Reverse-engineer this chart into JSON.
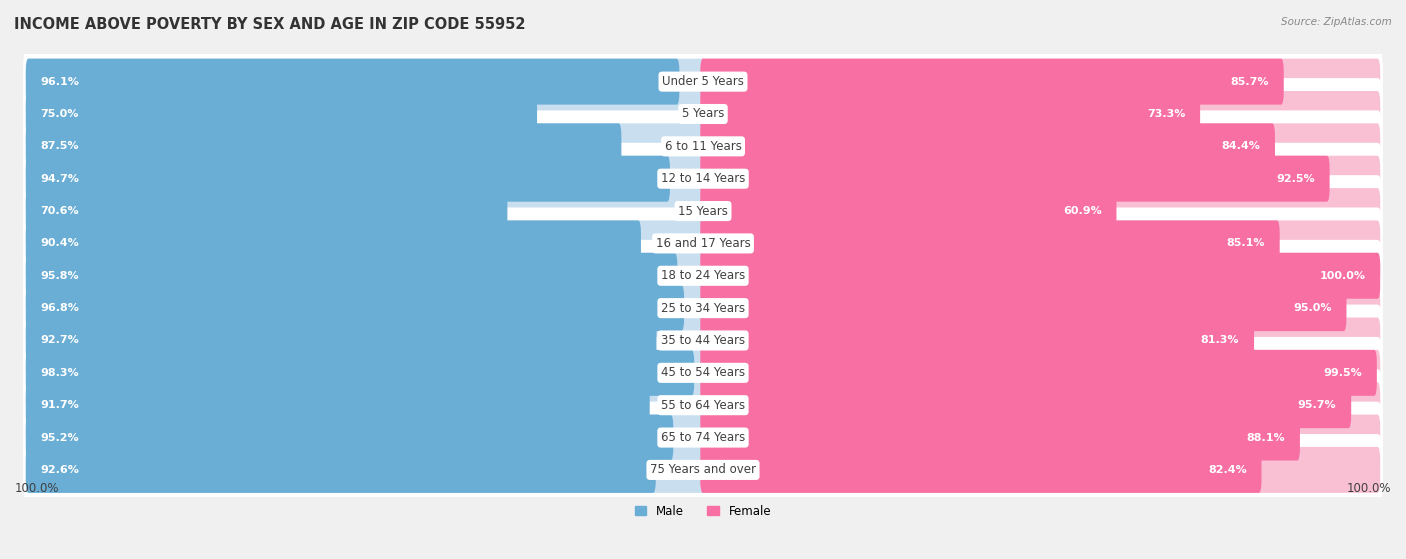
{
  "title": "INCOME ABOVE POVERTY BY SEX AND AGE IN ZIP CODE 55952",
  "source": "Source: ZipAtlas.com",
  "categories": [
    "Under 5 Years",
    "5 Years",
    "6 to 11 Years",
    "12 to 14 Years",
    "15 Years",
    "16 and 17 Years",
    "18 to 24 Years",
    "25 to 34 Years",
    "35 to 44 Years",
    "45 to 54 Years",
    "55 to 64 Years",
    "65 to 74 Years",
    "75 Years and over"
  ],
  "male_values": [
    96.1,
    75.0,
    87.5,
    94.7,
    70.6,
    90.4,
    95.8,
    96.8,
    92.7,
    98.3,
    91.7,
    95.2,
    92.6
  ],
  "female_values": [
    85.7,
    73.3,
    84.4,
    92.5,
    60.9,
    85.1,
    100.0,
    95.0,
    81.3,
    99.5,
    95.7,
    88.1,
    82.4
  ],
  "male_color": "#6aadd5",
  "female_color": "#f76fa3",
  "male_light_color": "#c9dff0",
  "female_light_color": "#f9c0d4",
  "bg_color": "#f0f0f0",
  "row_bg_color": "#ffffff",
  "title_fontsize": 10.5,
  "label_fontsize": 8.5,
  "value_fontsize": 8,
  "axis_label_fontsize": 8.5,
  "max_val": 100.0,
  "x_axis_label_left": "100.0%",
  "x_axis_label_right": "100.0%"
}
